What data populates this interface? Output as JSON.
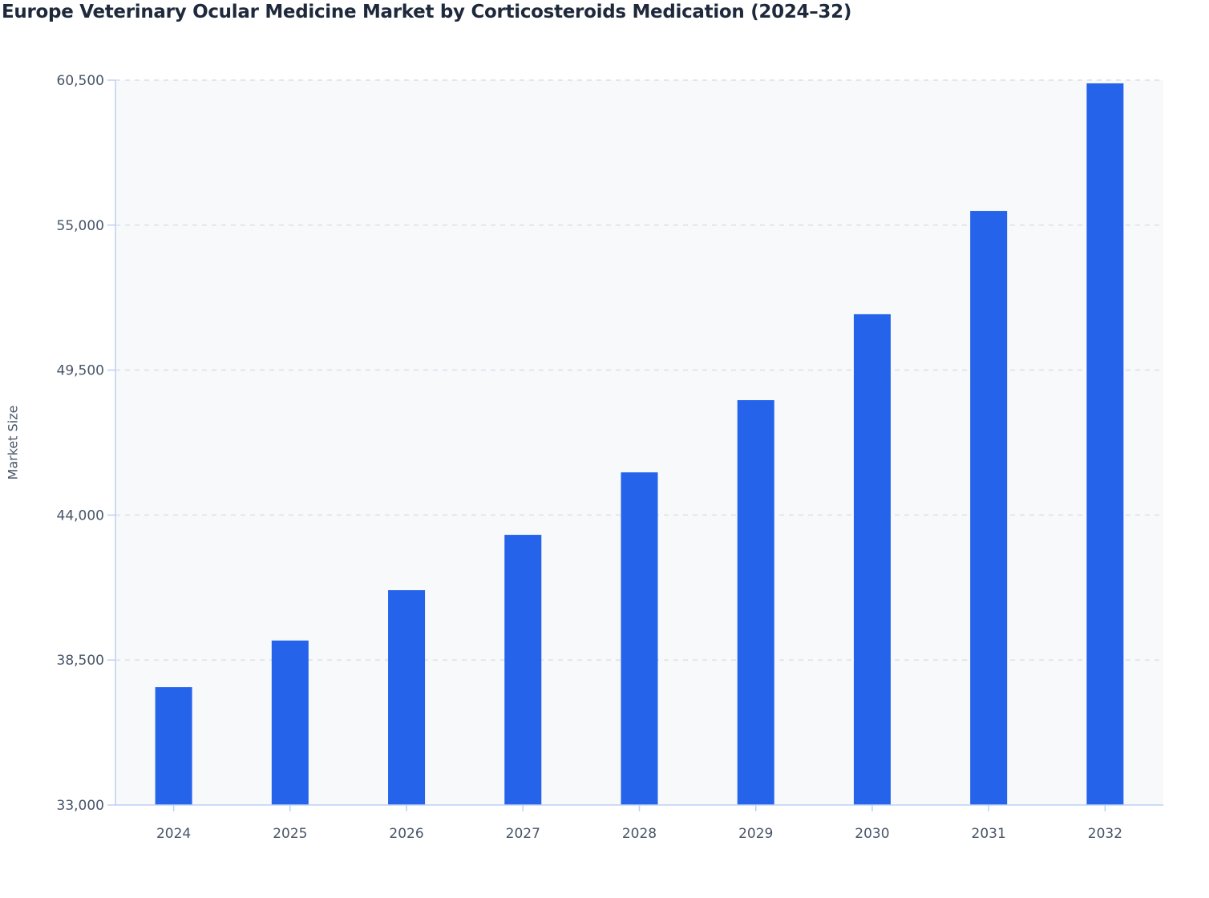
{
  "chart_data": {
    "type": "bar",
    "title": "Europe Veterinary Ocular Medicine Market by Corticosteroids Medication (2024–32)",
    "xlabel": "",
    "ylabel": "Market Size",
    "categories": [
      "2024",
      "2025",
      "2026",
      "2027",
      "2028",
      "2029",
      "2030",
      "2031",
      "2032"
    ],
    "values": [
      37470,
      39240,
      41150,
      43250,
      45620,
      48360,
      51620,
      55540,
      60380
    ],
    "ylim": [
      33000,
      60500
    ],
    "yticks": [
      33000,
      38500,
      44000,
      49500,
      55000,
      60500
    ],
    "ytick_labels": [
      "33,000",
      "38,500",
      "44,000",
      "49,500",
      "55,000",
      "60,500"
    ],
    "grid": true,
    "bar_color": "#2563eb",
    "plot_background": "#f8f9fb"
  }
}
